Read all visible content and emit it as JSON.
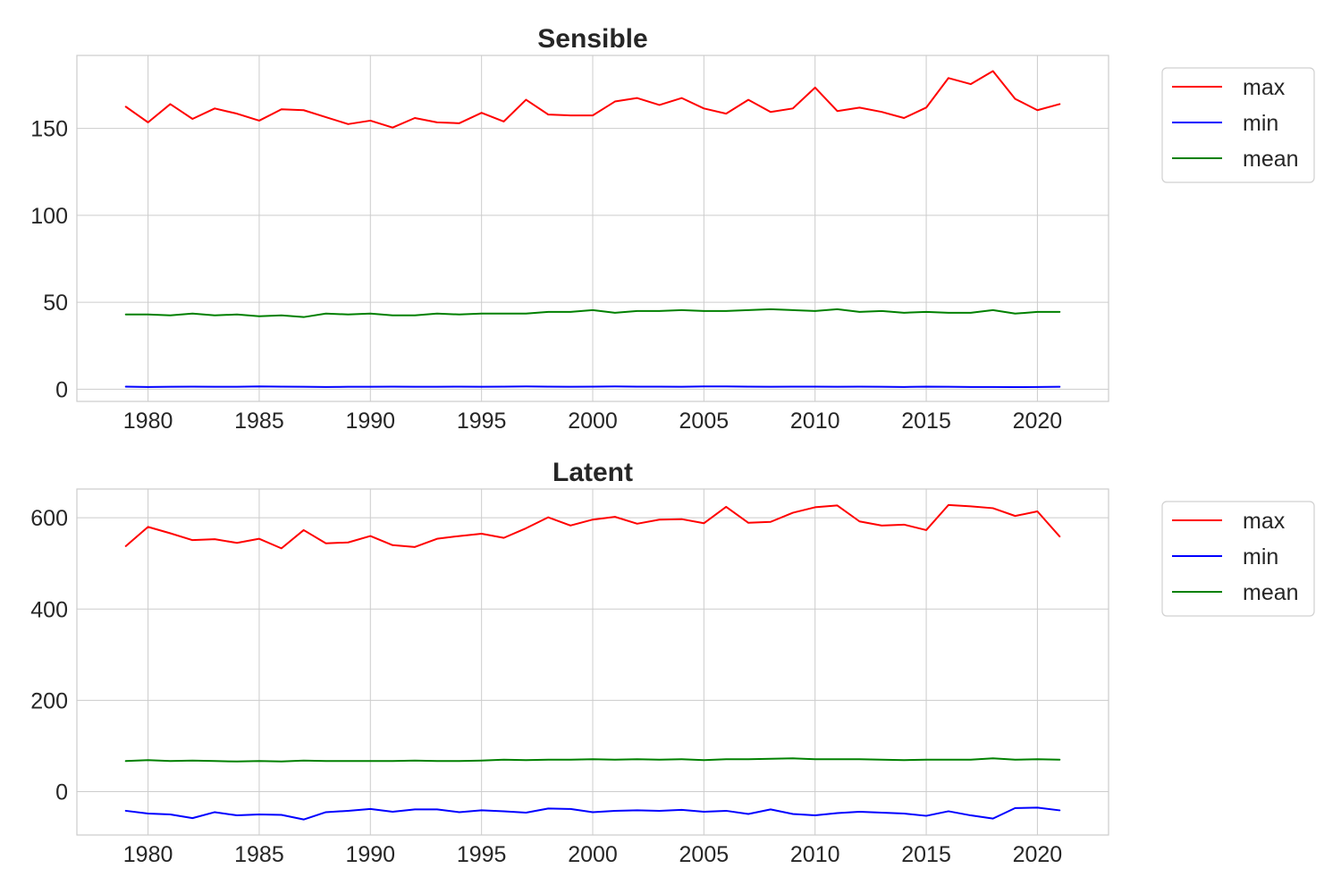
{
  "chart_data": [
    {
      "type": "line",
      "title": "Sensible",
      "xlabel": "",
      "ylabel": "",
      "xlim": [
        1976.8,
        2023.2
      ],
      "ylim": [
        -7,
        192
      ],
      "xticks": [
        1980,
        1985,
        1990,
        1995,
        2000,
        2005,
        2010,
        2015,
        2020
      ],
      "yticks": [
        0,
        50,
        100,
        150
      ],
      "grid": true,
      "legend_position": "outside-upper-right",
      "x": [
        1979,
        1980,
        1981,
        1982,
        1983,
        1984,
        1985,
        1986,
        1987,
        1988,
        1989,
        1990,
        1991,
        1992,
        1993,
        1994,
        1995,
        1996,
        1997,
        1998,
        1999,
        2000,
        2001,
        2002,
        2003,
        2004,
        2005,
        2006,
        2007,
        2008,
        2009,
        2010,
        2011,
        2012,
        2013,
        2014,
        2015,
        2016,
        2017,
        2018,
        2019,
        2020,
        2021
      ],
      "series": [
        {
          "name": "max",
          "color": "#ff0000",
          "values": [
            162.5,
            153.5,
            164,
            155.5,
            161.5,
            158.5,
            154.5,
            161,
            160.5,
            156.5,
            152.5,
            154.5,
            150.5,
            156,
            153.5,
            153,
            159,
            154,
            166.5,
            158,
            157.5,
            157.5,
            165.5,
            167.5,
            163.5,
            167.5,
            161.5,
            158.5,
            166.5,
            159.5,
            161.5,
            173.5,
            160,
            162,
            159.5,
            156,
            162,
            179,
            175.5,
            183,
            167,
            160.5,
            164
          ]
        },
        {
          "name": "min",
          "color": "#0000ff",
          "values": [
            1.5,
            1.3,
            1.4,
            1.5,
            1.4,
            1.4,
            1.6,
            1.5,
            1.4,
            1.3,
            1.4,
            1.4,
            1.5,
            1.4,
            1.4,
            1.5,
            1.4,
            1.5,
            1.6,
            1.5,
            1.4,
            1.5,
            1.6,
            1.5,
            1.5,
            1.4,
            1.6,
            1.6,
            1.5,
            1.4,
            1.5,
            1.5,
            1.4,
            1.5,
            1.4,
            1.3,
            1.5,
            1.4,
            1.3,
            1.3,
            1.2,
            1.3,
            1.4
          ]
        },
        {
          "name": "mean",
          "color": "#008000",
          "values": [
            43,
            43,
            42.5,
            43.5,
            42.5,
            43,
            42,
            42.5,
            41.5,
            43.5,
            43,
            43.5,
            42.5,
            42.5,
            43.5,
            43,
            43.5,
            43.5,
            43.5,
            44.5,
            44.5,
            45.5,
            44,
            45,
            45,
            45.5,
            45,
            45,
            45.5,
            46,
            45.5,
            45,
            46,
            44.5,
            45,
            44,
            44.5,
            44,
            44,
            45.5,
            43.5,
            44.5,
            44.5
          ]
        }
      ]
    },
    {
      "type": "line",
      "title": "Latent",
      "xlabel": "",
      "ylabel": "",
      "xlim": [
        1976.8,
        2023.2
      ],
      "ylim": [
        -95,
        663
      ],
      "xticks": [
        1980,
        1985,
        1990,
        1995,
        2000,
        2005,
        2010,
        2015,
        2020
      ],
      "yticks": [
        0,
        200,
        400,
        600
      ],
      "grid": true,
      "legend_position": "outside-upper-right",
      "x": [
        1979,
        1980,
        1981,
        1982,
        1983,
        1984,
        1985,
        1986,
        1987,
        1988,
        1989,
        1990,
        1991,
        1992,
        1993,
        1994,
        1995,
        1996,
        1997,
        1998,
        1999,
        2000,
        2001,
        2002,
        2003,
        2004,
        2005,
        2006,
        2007,
        2008,
        2009,
        2010,
        2011,
        2012,
        2013,
        2014,
        2015,
        2016,
        2017,
        2018,
        2019,
        2020,
        2021
      ],
      "series": [
        {
          "name": "max",
          "color": "#ff0000",
          "values": [
            538,
            580,
            566,
            551,
            553,
            545,
            554,
            533,
            573,
            544,
            546,
            560,
            540,
            536,
            554,
            560,
            565,
            556,
            577,
            601,
            583,
            596,
            602,
            587,
            596,
            597,
            588,
            624,
            589,
            591,
            611,
            623,
            627,
            592,
            583,
            585,
            573,
            628,
            625,
            621,
            604,
            614,
            559
          ]
        },
        {
          "name": "min",
          "color": "#0000ff",
          "values": [
            -42,
            -48,
            -50,
            -58,
            -45,
            -52,
            -50,
            -51,
            -61,
            -45,
            -42,
            -38,
            -44,
            -39,
            -39,
            -45,
            -41,
            -43,
            -46,
            -37,
            -38,
            -45,
            -42,
            -41,
            -42,
            -40,
            -44,
            -42,
            -49,
            -39,
            -49,
            -52,
            -47,
            -44,
            -46,
            -48,
            -53,
            -43,
            -52,
            -59,
            -36,
            -35,
            -41
          ]
        },
        {
          "name": "mean",
          "color": "#008000",
          "values": [
            67,
            69,
            67,
            68,
            67,
            66,
            67,
            66,
            68,
            67,
            67,
            67,
            67,
            68,
            67,
            67,
            68,
            70,
            69,
            70,
            70,
            71,
            70,
            71,
            70,
            71,
            69,
            71,
            71,
            72,
            73,
            71,
            71,
            71,
            70,
            69,
            70,
            70,
            70,
            73,
            70,
            71,
            70
          ]
        }
      ]
    }
  ]
}
